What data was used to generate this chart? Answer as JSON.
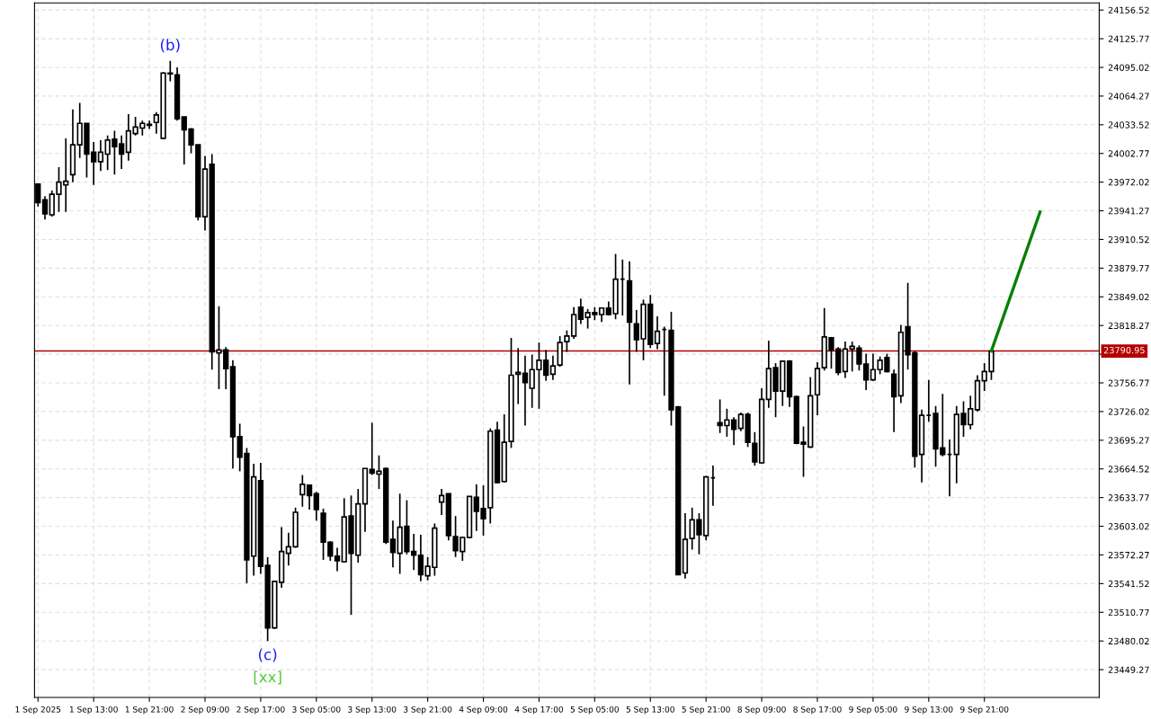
{
  "chart_data": {
    "type": "candlestick",
    "categories": [
      "1 Sep 2025",
      null,
      null,
      null,
      null,
      null,
      null,
      null,
      "1 Sep 13:00",
      null,
      null,
      null,
      null,
      null,
      null,
      null,
      "1 Sep 21:00",
      null,
      null,
      null,
      null,
      null,
      null,
      null,
      "2 Sep 09:00",
      null,
      null,
      null,
      null,
      null,
      null,
      null,
      "2 Sep 17:00",
      null,
      null,
      null,
      null,
      null,
      null,
      null,
      "3 Sep 05:00",
      null,
      null,
      null,
      null,
      null,
      null,
      null,
      "3 Sep 13:00",
      null,
      null,
      null,
      null,
      null,
      null,
      null,
      "3 Sep 21:00",
      null,
      null,
      null,
      null,
      null,
      null,
      null,
      "4 Sep 09:00",
      null,
      null,
      null,
      null,
      null,
      null,
      null,
      "4 Sep 17:00",
      null,
      null,
      null,
      null,
      null,
      null,
      null,
      "5 Sep 05:00",
      null,
      null,
      null,
      null,
      null,
      null,
      null,
      "5 Sep 13:00",
      null,
      null,
      null,
      null,
      null,
      null,
      null,
      "5 Sep 21:00",
      null,
      null,
      null,
      null,
      null,
      null,
      null,
      "8 Sep 09:00",
      null,
      null,
      null,
      null,
      null,
      null,
      null,
      "8 Sep 17:00",
      null,
      null,
      null,
      null,
      null,
      null,
      null,
      "9 Sep 05:00",
      null,
      null,
      null,
      null,
      null,
      null,
      null,
      "9 Sep 13:00",
      null,
      null,
      null,
      null,
      null,
      null,
      null,
      "9 Sep 21:00",
      null,
      null,
      null,
      null,
      null,
      null,
      null,
      null,
      null,
      null,
      null,
      null,
      null,
      null,
      null,
      null
    ],
    "series": [
      {
        "color": "#000000",
        "ohlc": [
          [
            23970,
            23970,
            23946,
            23950
          ],
          [
            23953,
            23957,
            23932,
            23938
          ],
          [
            23937,
            23963,
            23935,
            23959
          ],
          [
            23959,
            23988,
            23940,
            23972
          ],
          [
            23969,
            24019,
            23940,
            23973
          ],
          [
            23980,
            24050,
            23972,
            24012
          ],
          [
            24012,
            24057,
            23998,
            24035
          ],
          [
            24035,
            24035,
            23977,
            24002
          ],
          [
            24004,
            24015,
            23969,
            23994
          ],
          [
            23994,
            24017,
            23984,
            24004
          ],
          [
            24002,
            24022,
            23985,
            24017
          ],
          [
            24018,
            24027,
            23980,
            24010
          ],
          [
            24013,
            24022,
            23986,
            24002
          ],
          [
            24004,
            24045,
            23995,
            24027
          ],
          [
            24024,
            24042,
            24022,
            24031
          ],
          [
            24030,
            24038,
            24022,
            24035
          ],
          [
            24033,
            24038,
            24029,
            24034
          ],
          [
            24036,
            24047,
            24024,
            24044
          ],
          [
            24019,
            24090,
            24018,
            24089
          ],
          [
            24089,
            24102,
            24080,
            24088
          ],
          [
            24087,
            24095,
            24038,
            24040
          ],
          [
            24042,
            24042,
            23991,
            24028
          ],
          [
            24029,
            24030,
            24003,
            24012
          ],
          [
            24012,
            24012,
            23931,
            23935
          ],
          [
            23935,
            24000,
            23920,
            23986
          ],
          [
            23991,
            24002,
            23771,
            23790
          ],
          [
            23789,
            23839,
            23750,
            23792
          ],
          [
            23792,
            23795,
            23750,
            23772
          ],
          [
            23774,
            23781,
            23665,
            23699
          ],
          [
            23699,
            23713,
            23662,
            23677
          ],
          [
            23681,
            23687,
            23542,
            23567
          ],
          [
            23571,
            23670,
            23550,
            23656
          ],
          [
            23652,
            23671,
            23552,
            23560
          ],
          [
            23561,
            23570,
            23480,
            23494
          ],
          [
            23494,
            23544,
            23493,
            23544
          ],
          [
            23543,
            23602,
            23537,
            23576
          ],
          [
            23574,
            23596,
            23561,
            23581
          ],
          [
            23581,
            23623,
            23580,
            23618
          ],
          [
            23637,
            23658,
            23624,
            23648
          ],
          [
            23647,
            23648,
            23621,
            23636
          ],
          [
            23638,
            23640,
            23609,
            23621
          ],
          [
            23617,
            23622,
            23567,
            23586
          ],
          [
            23586,
            23587,
            23566,
            23571
          ],
          [
            23571,
            23580,
            23555,
            23566
          ],
          [
            23565,
            23633,
            23564,
            23613
          ],
          [
            23614,
            23636,
            23508,
            23574
          ],
          [
            23572,
            23643,
            23564,
            23627
          ],
          [
            23627,
            23665,
            23597,
            23665
          ],
          [
            23664,
            23714,
            23658,
            23660
          ],
          [
            23659,
            23679,
            23643,
            23662
          ],
          [
            23665,
            23666,
            23584,
            23586
          ],
          [
            23589,
            23609,
            23559,
            23575
          ],
          [
            23574,
            23638,
            23552,
            23602
          ],
          [
            23603,
            23631,
            23573,
            23576
          ],
          [
            23576,
            23595,
            23556,
            23572
          ],
          [
            23572,
            23594,
            23544,
            23551
          ],
          [
            23550,
            23570,
            23545,
            23560
          ],
          [
            23559,
            23606,
            23550,
            23601
          ],
          [
            23629,
            23643,
            23615,
            23636
          ],
          [
            23638,
            23638,
            23588,
            23593
          ],
          [
            23592,
            23614,
            23570,
            23577
          ],
          [
            23576,
            23592,
            23566,
            23591
          ],
          [
            23591,
            23635,
            23590,
            23635
          ],
          [
            23634,
            23648,
            23598,
            23619
          ],
          [
            23622,
            23647,
            23593,
            23611
          ],
          [
            23623,
            23708,
            23606,
            23705
          ],
          [
            23706,
            23715,
            23649,
            23650
          ],
          [
            23651,
            23723,
            23650,
            23693
          ],
          [
            23694,
            23805,
            23687,
            23765
          ],
          [
            23766,
            23794,
            23734,
            23768
          ],
          [
            23767,
            23786,
            23711,
            23757
          ],
          [
            23751,
            23787,
            23730,
            23771
          ],
          [
            23771,
            23800,
            23729,
            23781
          ],
          [
            23781,
            23792,
            23759,
            23765
          ],
          [
            23766,
            23786,
            23760,
            23775
          ],
          [
            23776,
            23807,
            23774,
            23800
          ],
          [
            23801,
            23813,
            23790,
            23807
          ],
          [
            23807,
            23838,
            23804,
            23830
          ],
          [
            23838,
            23847,
            23820,
            23825
          ],
          [
            23827,
            23836,
            23815,
            23832
          ],
          [
            23832,
            23838,
            23824,
            23830
          ],
          [
            23830,
            23837,
            23822,
            23837
          ],
          [
            23837,
            23844,
            23829,
            23830
          ],
          [
            23831,
            23895,
            23825,
            23868
          ],
          [
            23868,
            23889,
            23829,
            23868
          ],
          [
            23866,
            23887,
            23755,
            23822
          ],
          [
            23820,
            23835,
            23790,
            23803
          ],
          [
            23804,
            23846,
            23781,
            23841
          ],
          [
            23841,
            23851,
            23794,
            23798
          ],
          [
            23799,
            23828,
            23793,
            23812
          ],
          [
            23814,
            23817,
            23743,
            23814
          ],
          [
            23813,
            23833,
            23711,
            23728
          ],
          [
            23731,
            23732,
            23551,
            23551
          ],
          [
            23553,
            23617,
            23547,
            23589
          ],
          [
            23590,
            23623,
            23578,
            23610
          ],
          [
            23610,
            23617,
            23573,
            23594
          ],
          [
            23593,
            23657,
            23588,
            23656
          ],
          [
            23655,
            23668,
            23625,
            23655
          ],
          [
            23714,
            23739,
            23703,
            23711
          ],
          [
            23711,
            23729,
            23699,
            23717
          ],
          [
            23717,
            23720,
            23690,
            23707
          ],
          [
            23708,
            23725,
            23705,
            23723
          ],
          [
            23723,
            23725,
            23688,
            23693
          ],
          [
            23692,
            23704,
            23668,
            23672
          ],
          [
            23671,
            23751,
            23670,
            23739
          ],
          [
            23739,
            23802,
            23730,
            23772
          ],
          [
            23773,
            23778,
            23720,
            23748
          ],
          [
            23748,
            23780,
            23732,
            23780
          ],
          [
            23780,
            23781,
            23731,
            23742
          ],
          [
            23742,
            23743,
            23691,
            23692
          ],
          [
            23693,
            23710,
            23656,
            23691
          ],
          [
            23688,
            23763,
            23687,
            23743
          ],
          [
            23744,
            23779,
            23722,
            23772
          ],
          [
            23773,
            23837,
            23770,
            23806
          ],
          [
            23805,
            23806,
            23772,
            23792
          ],
          [
            23793,
            23795,
            23765,
            23768
          ],
          [
            23769,
            23801,
            23762,
            23793
          ],
          [
            23793,
            23801,
            23769,
            23796
          ],
          [
            23794,
            23797,
            23770,
            23777
          ],
          [
            23777,
            23788,
            23749,
            23760
          ],
          [
            23760,
            23788,
            23759,
            23771
          ],
          [
            23771,
            23785,
            23766,
            23781
          ],
          [
            23784,
            23788,
            23768,
            23769
          ],
          [
            23766,
            23771,
            23704,
            23742
          ],
          [
            23743,
            23819,
            23735,
            23811
          ],
          [
            23817,
            23864,
            23771,
            23787
          ],
          [
            23789,
            23791,
            23666,
            23678
          ],
          [
            23680,
            23728,
            23650,
            23722
          ],
          [
            23722,
            23760,
            23715,
            23722
          ],
          [
            23724,
            23732,
            23667,
            23686
          ],
          [
            23687,
            23745,
            23678,
            23680
          ],
          [
            23680,
            23696,
            23635,
            23680
          ],
          [
            23680,
            23732,
            23649,
            23723
          ],
          [
            23724,
            23737,
            23699,
            23712
          ],
          [
            23712,
            23743,
            23707,
            23729
          ],
          [
            23728,
            23765,
            23726,
            23759
          ],
          [
            23759,
            23778,
            23748,
            23769
          ],
          [
            23769,
            23791,
            23760,
            23790.95
          ],
          null,
          null,
          null,
          null,
          null,
          null,
          null,
          null,
          null,
          null,
          null,
          null,
          null,
          null,
          null
        ]
      },
      {
        "type": "line",
        "color": "#008000",
        "values": [
          null,
          null,
          null,
          null,
          null,
          null,
          null,
          null,
          null,
          null,
          null,
          null,
          null,
          null,
          null,
          null,
          null,
          null,
          null,
          null,
          null,
          null,
          null,
          null,
          null,
          null,
          null,
          null,
          null,
          null,
          null,
          null,
          null,
          null,
          null,
          null,
          null,
          null,
          null,
          null,
          null,
          null,
          null,
          null,
          null,
          null,
          null,
          null,
          null,
          null,
          null,
          null,
          null,
          null,
          null,
          null,
          null,
          null,
          null,
          null,
          null,
          null,
          null,
          null,
          null,
          null,
          null,
          null,
          null,
          null,
          null,
          null,
          null,
          null,
          null,
          null,
          null,
          null,
          null,
          null,
          null,
          null,
          null,
          null,
          null,
          null,
          null,
          null,
          null,
          null,
          null,
          null,
          null,
          null,
          null,
          null,
          null,
          null,
          null,
          null,
          null,
          null,
          null,
          null,
          null,
          null,
          null,
          null,
          null,
          null,
          null,
          null,
          null,
          null,
          null,
          null,
          null,
          null,
          null,
          null,
          null,
          null,
          null,
          null,
          null,
          null,
          null,
          null,
          null,
          null,
          null,
          null,
          null,
          null,
          null,
          null,
          null,
          23790.95,
          null,
          null,
          null,
          null,
          null,
          null,
          23940,
          null,
          null,
          null,
          null,
          null,
          null,
          null,
          null
        ]
      }
    ],
    "ylim": [
      23419.5,
      24164.2
    ],
    "yticks": [
      23449.27,
      23480.02,
      23510.77,
      23541.52,
      23572.27,
      23603.02,
      23633.77,
      23664.52,
      23695.27,
      23726.02,
      23756.77,
      {
        "value": 23787.52,
        "label": null
      },
      23818.27,
      23849.02,
      23879.77,
      23910.52,
      23941.27,
      23972.02,
      24002.77,
      24033.52,
      24064.27,
      24095.02,
      24125.77,
      24156.52
    ],
    "grid": true,
    "ref_lines": [
      {
        "axis": "y",
        "value": 23790.95,
        "label": "23790.95",
        "color": "#b40000"
      }
    ],
    "annotations": [
      {
        "text": "(b)",
        "y": 24102
      },
      {
        "text": "(c)",
        "y": 23480
      },
      {
        "text": "[xx]",
        "y": 23480
      }
    ]
  }
}
